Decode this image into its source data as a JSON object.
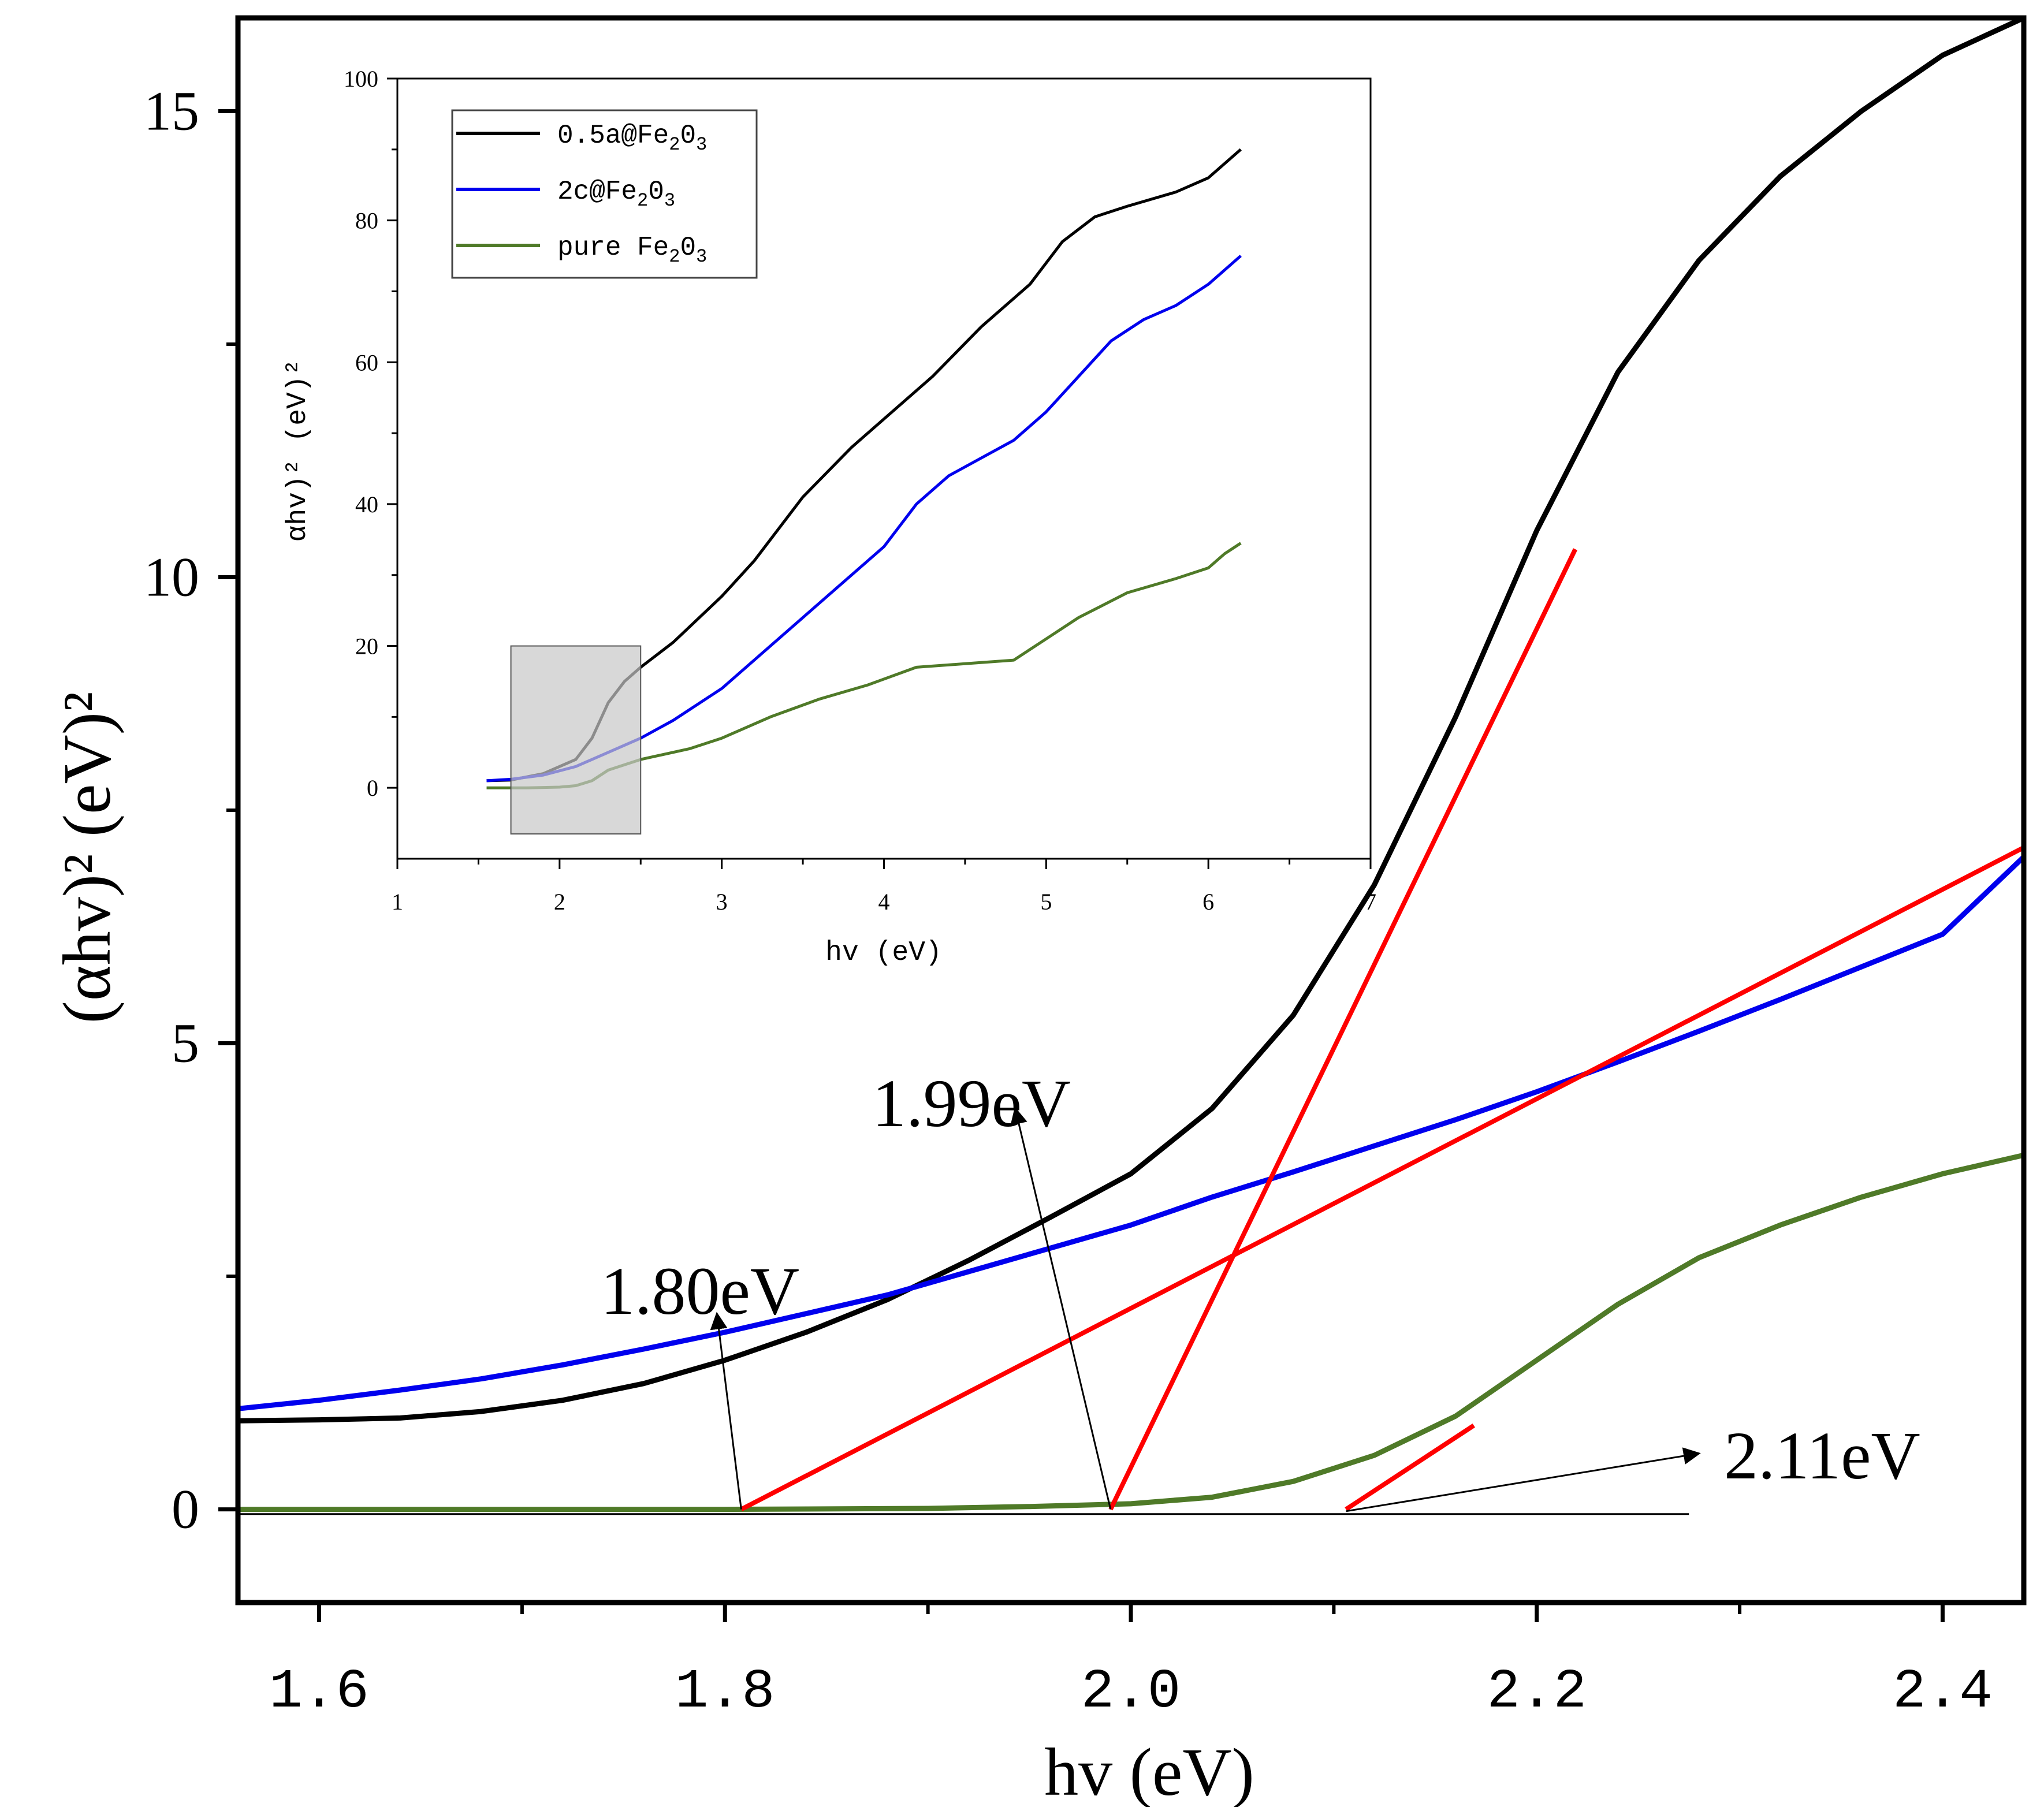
{
  "chart_data": [
    {
      "type": "line",
      "title": "",
      "xlabel": "hv (eV)",
      "ylabel": "(αhv)² (eV)²",
      "xlim": [
        1.56,
        2.44
      ],
      "ylim": [
        -1,
        16
      ],
      "xticks": [
        {
          "value": 1.6,
          "label": "1.6"
        },
        {
          "value": 1.8,
          "label": "1.8"
        },
        {
          "value": 2.0,
          "label": "2.0"
        },
        {
          "value": 2.2,
          "label": "2.2"
        },
        {
          "value": 2.4,
          "label": "2.4"
        }
      ],
      "yticks": [
        {
          "value": 0,
          "label": "0"
        },
        {
          "value": 5,
          "label": "5"
        },
        {
          "value": 10,
          "label": "10"
        },
        {
          "value": 15,
          "label": "15"
        }
      ],
      "grid": false,
      "series": [
        {
          "name": "0.5a@Fe2O3",
          "color": "#000000",
          "x": [
            1.56,
            1.6,
            1.64,
            1.68,
            1.72,
            1.76,
            1.8,
            1.84,
            1.88,
            1.92,
            1.96,
            2.0,
            2.04,
            2.08,
            2.12,
            2.16,
            2.2,
            2.24,
            2.28,
            2.32,
            2.36,
            2.4,
            2.44
          ],
          "y": [
            0.95,
            0.96,
            0.98,
            1.05,
            1.17,
            1.35,
            1.6,
            1.9,
            2.25,
            2.67,
            3.13,
            3.6,
            4.3,
            5.3,
            6.7,
            8.5,
            10.5,
            12.2,
            13.4,
            14.3,
            15.0,
            15.6,
            16.0
          ]
        },
        {
          "name": "2c@Fe2O3",
          "color": "#0000ee",
          "x": [
            1.56,
            1.6,
            1.64,
            1.68,
            1.72,
            1.76,
            1.8,
            1.84,
            1.88,
            1.92,
            1.96,
            2.0,
            2.04,
            2.08,
            2.12,
            2.16,
            2.2,
            2.24,
            2.28,
            2.32,
            2.36,
            2.4,
            2.44
          ],
          "y": [
            1.08,
            1.17,
            1.28,
            1.4,
            1.55,
            1.72,
            1.9,
            2.1,
            2.3,
            2.55,
            2.8,
            3.05,
            3.35,
            3.62,
            3.9,
            4.18,
            4.48,
            4.8,
            5.13,
            5.47,
            5.82,
            6.17,
            7.0
          ]
        },
        {
          "name": "pure Fe2O3",
          "color": "#4f7a28",
          "x": [
            1.56,
            1.6,
            1.7,
            1.8,
            1.9,
            1.95,
            2.0,
            2.04,
            2.08,
            2.12,
            2.16,
            2.2,
            2.24,
            2.28,
            2.32,
            2.36,
            2.4,
            2.44
          ],
          "y": [
            0.0,
            0.0,
            0.0,
            0.0,
            0.01,
            0.03,
            0.06,
            0.13,
            0.3,
            0.58,
            1.0,
            1.6,
            2.2,
            2.7,
            3.05,
            3.35,
            3.6,
            3.8
          ]
        }
      ],
      "fit_lines": [
        {
          "color": "#ff0000",
          "x": [
            1.808,
            2.44
          ],
          "y": [
            0.0,
            7.1
          ]
        },
        {
          "color": "#ff0000",
          "x": [
            1.99,
            2.219
          ],
          "y": [
            0.0,
            10.3
          ]
        },
        {
          "color": "#ff0000",
          "x": [
            2.106,
            2.169
          ],
          "y": [
            0.0,
            0.9
          ]
        }
      ],
      "baseline": {
        "x": [
          1.56,
          2.275
        ],
        "y": [
          -0.05,
          -0.05
        ]
      },
      "annotations": [
        {
          "text": "1.80eV",
          "arrow_from": [
            1.808,
            0.0
          ],
          "arrow_to": [
            1.796,
            2.1
          ]
        },
        {
          "text": "1.99eV",
          "arrow_from": [
            1.99,
            0.0
          ],
          "arrow_to": [
            1.943,
            4.3
          ]
        },
        {
          "text": "2.11eV",
          "arrow_from": [
            2.106,
            -0.02
          ],
          "arrow_to": [
            2.28,
            0.6
          ]
        }
      ]
    },
    {
      "type": "line",
      "title": "",
      "xlabel": "hv (eV)",
      "ylabel": "αhv)² (eV)²",
      "xlim": [
        1,
        7
      ],
      "ylim": [
        -10,
        100
      ],
      "xticks": [
        {
          "value": 1,
          "label": "1"
        },
        {
          "value": 2,
          "label": "2"
        },
        {
          "value": 3,
          "label": "3"
        },
        {
          "value": 4,
          "label": "4"
        },
        {
          "value": 5,
          "label": "5"
        },
        {
          "value": 6,
          "label": "6"
        },
        {
          "value": 7,
          "label": "7"
        }
      ],
      "yticks": [
        {
          "value": 0,
          "label": "0"
        },
        {
          "value": 20,
          "label": "20"
        },
        {
          "value": 40,
          "label": "40"
        },
        {
          "value": 60,
          "label": "60"
        },
        {
          "value": 80,
          "label": "80"
        },
        {
          "value": 100,
          "label": "100"
        }
      ],
      "grid": false,
      "legend_position": "top-left",
      "legend": [
        {
          "base": "0.5a@Fe",
          "sub1": "2",
          "mid": "0",
          "sub2": "3",
          "color": "#000000"
        },
        {
          "base": "2c@Fe",
          "sub1": "2",
          "mid": "0",
          "sub2": "3",
          "color": "#0000ee"
        },
        {
          "base": "pure Fe",
          "sub1": "2",
          "mid": "0",
          "sub2": "3",
          "color": "#4f7a28"
        }
      ],
      "highlight_box": {
        "x": [
          1.7,
          2.5
        ],
        "y": [
          -6.5,
          20
        ]
      },
      "series": [
        {
          "name": "0.5a@Fe2O3",
          "color": "#000000",
          "x": [
            1.55,
            1.7,
            1.9,
            2.1,
            2.2,
            2.3,
            2.4,
            2.5,
            2.7,
            3.0,
            3.2,
            3.5,
            3.8,
            4.0,
            4.3,
            4.6,
            4.9,
            5.1,
            5.3,
            5.5,
            5.8,
            6.0,
            6.2
          ],
          "y": [
            1,
            1.1,
            2.0,
            4.0,
            7.0,
            12.0,
            15.0,
            17.0,
            20.5,
            27.0,
            32.0,
            41.0,
            48.0,
            52.0,
            58.0,
            65.0,
            71.0,
            77.0,
            80.5,
            82.0,
            84.0,
            86.0,
            90.0
          ]
        },
        {
          "name": "2c@Fe2O3",
          "color": "#0000ee",
          "x": [
            1.55,
            1.7,
            1.9,
            2.1,
            2.3,
            2.5,
            2.7,
            3.0,
            3.2,
            3.5,
            3.8,
            4.0,
            4.2,
            4.4,
            4.6,
            4.8,
            5.0,
            5.2,
            5.4,
            5.6,
            5.8,
            6.0,
            6.2
          ],
          "y": [
            1.0,
            1.2,
            1.8,
            3.0,
            5.0,
            7.0,
            9.5,
            14.0,
            18.0,
            24.0,
            30.0,
            34.0,
            40.0,
            44.0,
            46.5,
            49.0,
            53.0,
            58.0,
            63.0,
            66.0,
            68.0,
            71.0,
            75.0
          ]
        },
        {
          "name": "pure Fe2O3",
          "color": "#4f7a28",
          "x": [
            1.55,
            1.8,
            2.0,
            2.1,
            2.2,
            2.3,
            2.5,
            2.8,
            3.0,
            3.3,
            3.6,
            3.9,
            4.2,
            4.5,
            4.8,
            5.0,
            5.2,
            5.5,
            5.8,
            6.0,
            6.1,
            6.2
          ],
          "y": [
            0.0,
            0.0,
            0.1,
            0.3,
            1.0,
            2.5,
            4.0,
            5.5,
            7.0,
            10.0,
            12.5,
            14.5,
            17.0,
            17.5,
            18.0,
            21.0,
            24.0,
            27.5,
            29.5,
            31.0,
            33.0,
            34.5
          ]
        }
      ]
    }
  ]
}
